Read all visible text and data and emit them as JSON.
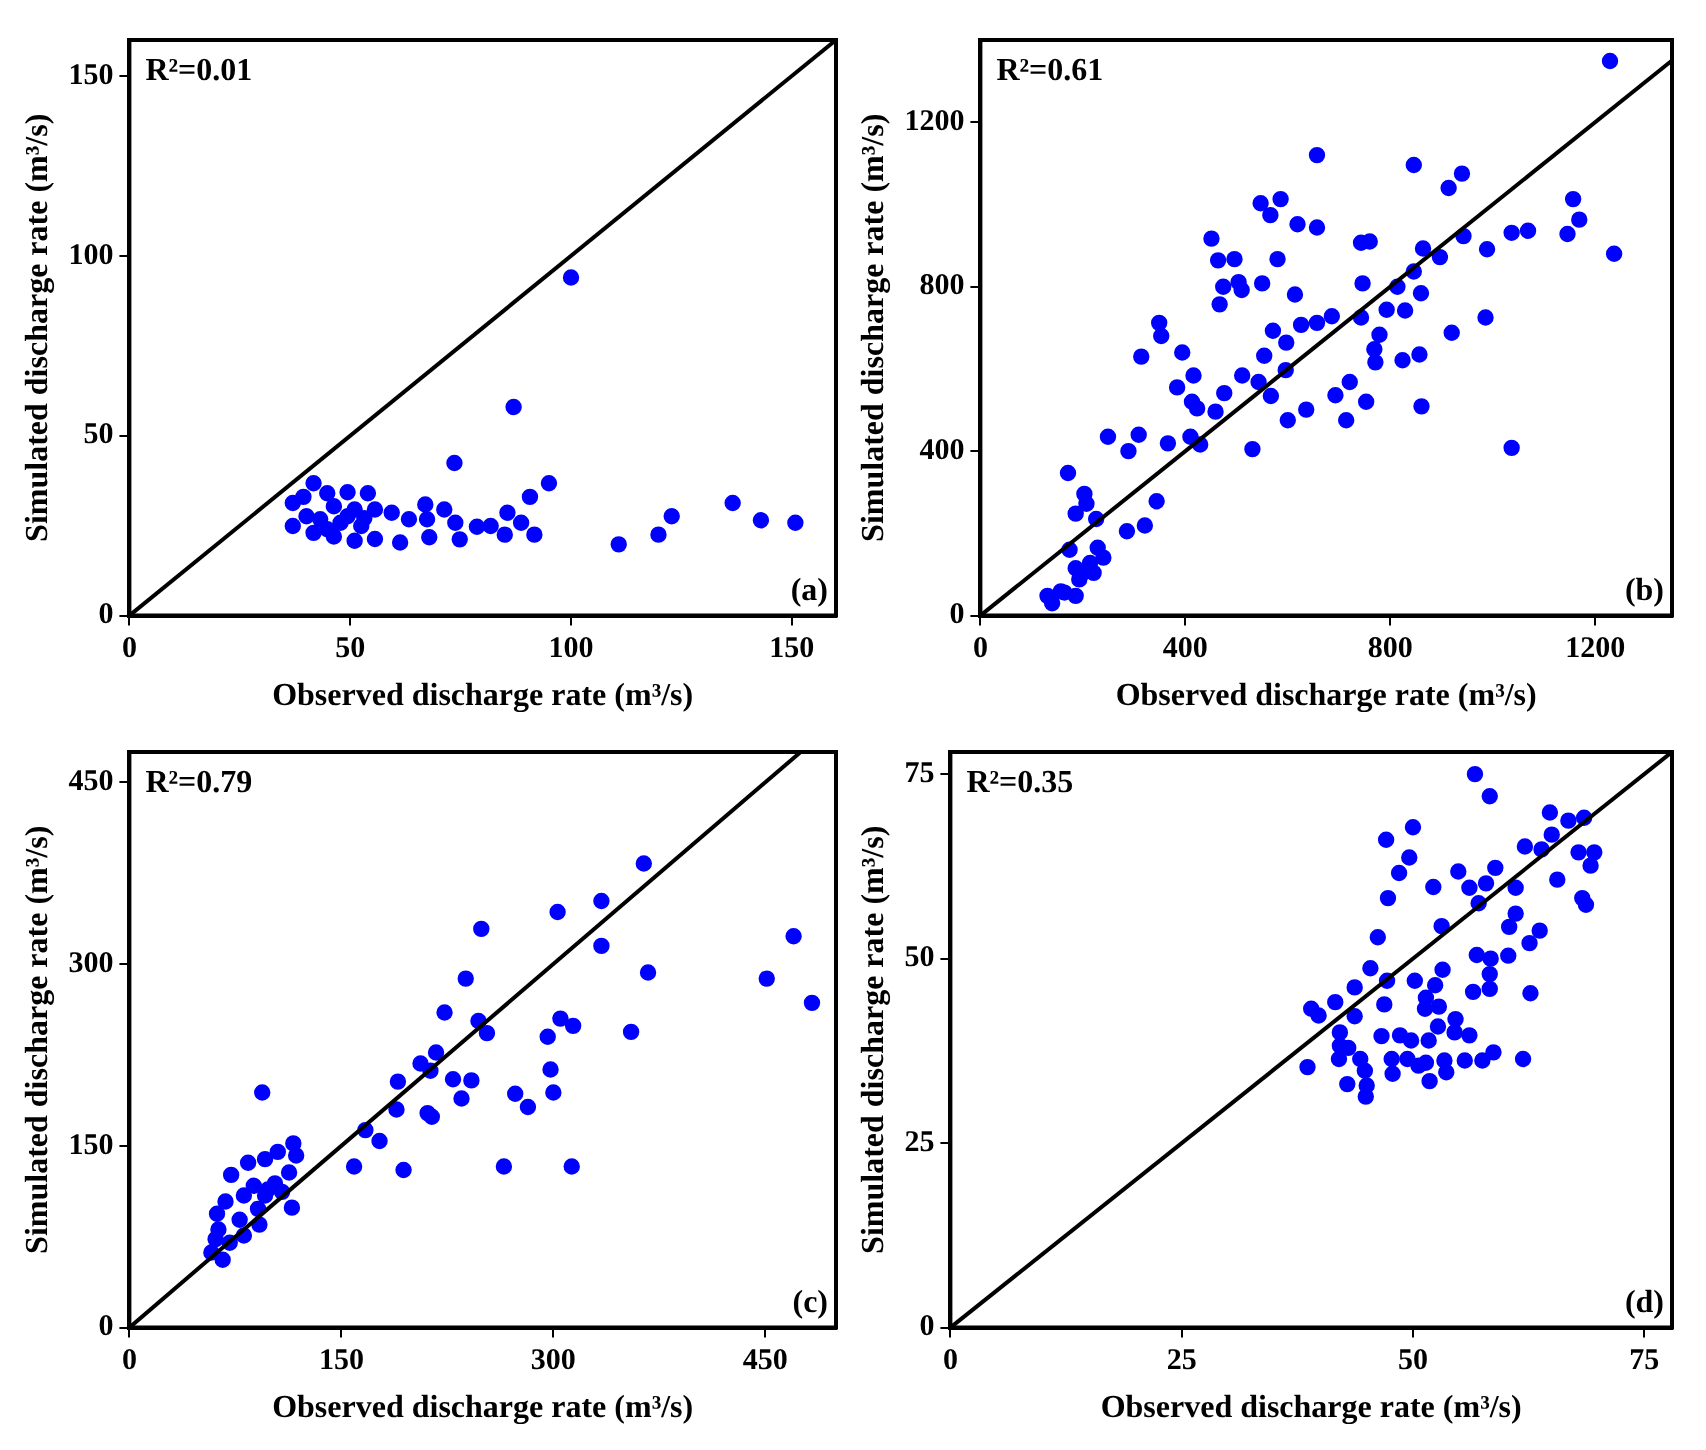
{
  "chart_data": [
    {
      "type": "scatter",
      "xlabel": "Observed discharge rate (m³/s)",
      "ylabel": "Simulated discharge rate (m³/s)",
      "xlim": [
        0,
        160
      ],
      "ylim": [
        0,
        160
      ],
      "xticks": [
        0,
        50,
        100,
        150
      ],
      "yticks": [
        0,
        50,
        100,
        150
      ],
      "annotations": [
        "R²=0.01",
        "(a)"
      ],
      "series": [
        {
          "type": "scatter",
          "marker": "circle",
          "color": "#0000ff",
          "x": [
            87,
            73.6,
            95,
            90.7,
            136.6,
            143,
            150.8,
            122.8,
            119.8,
            110.8,
            91.7,
            88.7,
            85.6,
            85,
            81.8,
            78.7,
            74.8,
            73.8,
            71.3,
            67,
            67.4,
            67.9,
            63.3,
            61.3,
            59.4,
            55.6,
            37,
            37,
            41.7,
            39.4,
            44.8,
            49.4,
            54,
            46.3,
            51,
            55.6,
            43.2,
            47.8,
            52.5,
            41.7,
            46.3,
            51,
            40.1,
            44.8,
            49.4,
            53.2,
            100
          ],
          "values": [
            58,
            42.4,
            36.8,
            33,
            31.3,
            26.5,
            25.8,
            27.6,
            22.5,
            19.8,
            22.5,
            25.8,
            28.6,
            22.5,
            24.9,
            24.7,
            21.2,
            25.8,
            29.5,
            30.9,
            26.8,
            21.8,
            26.8,
            20.3,
            28.6,
            21.3,
            31.3,
            24.9,
            36.8,
            33,
            34,
            34.3,
            34,
            30.4,
            29.5,
            29.5,
            26.8,
            25.8,
            24.9,
            23,
            22,
            20.8,
            27.6,
            24,
            27.6,
            27.1,
            94
          ]
        },
        {
          "type": "line",
          "color": "#000000",
          "x": [
            0,
            160
          ],
          "values": [
            0,
            160
          ]
        }
      ]
    },
    {
      "type": "scatter",
      "xlabel": "Observed discharge rate (m³/s)",
      "ylabel": "Simulated discharge rate (m³/s)",
      "xlim": [
        0,
        1350
      ],
      "ylim": [
        0,
        1400
      ],
      "xticks": [
        0,
        400,
        800,
        1200
      ],
      "yticks": [
        0,
        400,
        800,
        1200
      ],
      "annotations": [
        "R²=0.61",
        "(b)"
      ],
      "series": [
        {
          "type": "scatter",
          "marker": "circle",
          "color": "#0000ff",
          "x": [
            1229,
            657,
            846,
            940,
            914,
            1157,
            1169,
            1146,
            1037,
            1069,
            1237,
            547,
            586,
            566,
            619,
            657,
            451,
            464,
            496,
            580,
            474,
            504,
            510,
            550,
            467,
            743,
            760,
            864,
            897,
            943,
            989,
            746,
            846,
            814,
            860,
            614,
            793,
            829,
            743,
            686,
            657,
            626,
            571,
            597,
            554,
            596,
            511,
            543,
            567,
            476,
            459,
            423,
            413,
            416,
            384,
            394,
            349,
            353,
            314,
            779,
            769,
            771,
            824,
            857,
            920,
            986,
            693,
            721,
            753,
            714,
            636,
            600,
            861,
            1037,
            531,
            429,
            410,
            366,
            309,
            289,
            249,
            171,
            203,
            207,
            186,
            226,
            344,
            321,
            286,
            229,
            174,
            240,
            214,
            186,
            221,
            193,
            157,
            186,
            131,
            140,
            164,
            200
          ],
          "values": [
            1349,
            1120,
            1096,
            1075,
            1040,
            1013,
            963,
            928,
            931,
            936,
            880,
            1003,
            1013,
            974,
            952,
            944,
            917,
            864,
            867,
            867,
            800,
            811,
            792,
            808,
            757,
            907,
            910,
            893,
            872,
            923,
            891,
            808,
            837,
            800,
            784,
            781,
            744,
            742,
            725,
            728,
            712,
            707,
            693,
            664,
            632,
            597,
            584,
            568,
            534,
            541,
            496,
            504,
            520,
            584,
            555,
            640,
            712,
            680,
            630,
            683,
            648,
            616,
            621,
            635,
            688,
            725,
            536,
            568,
            520,
            475,
            501,
            475,
            509,
            408,
            405,
            416,
            435,
            419,
            440,
            400,
            435,
            347,
            296,
            272,
            248,
            235,
            278,
            219,
            205,
            165,
            160,
            141,
            128,
            115,
            104,
            88,
            59,
            48,
            48,
            30,
            56,
            104
          ]
        },
        {
          "type": "line",
          "color": "#000000",
          "x": [
            0,
            1350
          ],
          "values": [
            0,
            1350
          ]
        }
      ]
    },
    {
      "type": "scatter",
      "xlabel": "Observed discharge rate (m³/s)",
      "ylabel": "Simulated discharge rate (m³/s)",
      "xlim": [
        0,
        500
      ],
      "ylim": [
        0,
        475
      ],
      "xticks": [
        0,
        150,
        300,
        450
      ],
      "yticks": [
        0,
        150,
        300,
        450
      ],
      "annotations": [
        "R²=0.79",
        "(c)"
      ],
      "series": [
        {
          "type": "scatter",
          "marker": "circle",
          "color": "#0000ff",
          "x": [
            364,
            303,
            334,
            334,
            367,
            249,
            238,
            470,
            451,
            483,
            223,
            247,
            253,
            305,
            314,
            296,
            355,
            217,
            206,
            213,
            190,
            229,
            242,
            235,
            298,
            300,
            273,
            282,
            189,
            211,
            214,
            167,
            177,
            159,
            194,
            265,
            313,
            94,
            116,
            105,
            118,
            84,
            72,
            96,
            113,
            103,
            88,
            96,
            81,
            68,
            115,
            91,
            62,
            78,
            92,
            63,
            81,
            71,
            58,
            66,
            61,
            98,
            108
          ],
          "values": [
            383,
            343,
            352,
            315,
            293,
            329,
            288,
            323,
            288,
            268,
            260,
            253,
            243,
            255,
            249,
            240,
            244,
            227,
            218,
            212,
            203,
            205,
            204,
            189,
            213,
            194,
            193,
            182,
            180,
            177,
            174,
            163,
            154,
            133,
            130,
            133,
            133,
            194,
            152,
            145,
            142,
            136,
            126,
            139,
            128,
            119,
            117,
            109,
            109,
            104,
            99,
            98,
            94,
            89,
            85,
            81,
            76,
            70,
            62,
            56,
            73,
            114,
            112
          ]
        },
        {
          "type": "line",
          "color": "#000000",
          "x": [
            0,
            475
          ],
          "values": [
            0,
            475
          ]
        }
      ]
    },
    {
      "type": "scatter",
      "xlabel": "Observed discharge rate (m³/s)",
      "ylabel": "Simulated discharge rate (m³/s)",
      "xlim": [
        0,
        78
      ],
      "ylim": [
        0,
        78
      ],
      "xticks": [
        0,
        25,
        50,
        75
      ],
      "yticks": [
        0,
        25,
        50,
        75
      ],
      "annotations": [
        "R²=0.35",
        "(d)"
      ],
      "series": [
        {
          "type": "scatter",
          "marker": "circle",
          "color": "#0000ff",
          "x": [
            56.7,
            58.3,
            50,
            47.1,
            49.6,
            48.5,
            47.3,
            46.2,
            52.2,
            54.9,
            56.1,
            57.9,
            58.9,
            57.1,
            62.1,
            63.9,
            65,
            64.8,
            66.8,
            68.5,
            67.9,
            69.6,
            69.2,
            65.6,
            61.1,
            68.3,
            68.7,
            61.1,
            60.4,
            63.7,
            62.6,
            53.1,
            56.9,
            58.4,
            60.3,
            58.3,
            58.3,
            56.5,
            62.7,
            53.2,
            45.4,
            47.2,
            50.2,
            52.4,
            43.7,
            41.6,
            39,
            39.8,
            43.7,
            46.9,
            51.4,
            52.8,
            51.3,
            54.6,
            52.7,
            42.1,
            46.6,
            48.6,
            49.8,
            51.7,
            54.5,
            56.1,
            42.1,
            43,
            42,
            44.3,
            47.7,
            49.4,
            51.4,
            53.4,
            55.6,
            57.5,
            58.7,
            61.9,
            38.6,
            44.8,
            47.8,
            51.8,
            53.6,
            42.9,
            45,
            44.9,
            50.6
          ],
          "values": [
            75,
            72,
            67.8,
            66.1,
            63.7,
            61.6,
            58.2,
            52.9,
            59.7,
            61.8,
            59.6,
            60.2,
            62.3,
            57.5,
            65.2,
            64.8,
            66.8,
            69.8,
            68.7,
            69.1,
            64.4,
            64.4,
            62.6,
            60.7,
            59.6,
            58.2,
            57.3,
            56.1,
            54.3,
            53.8,
            52.1,
            54.4,
            50.5,
            50,
            50.4,
            47.9,
            45.9,
            45.5,
            45.3,
            48.5,
            48.7,
            47,
            47,
            46.4,
            46.1,
            44.1,
            43.2,
            42.3,
            42.2,
            43.8,
            44.7,
            43.5,
            43.2,
            41.8,
            40.8,
            40,
            39.5,
            39.6,
            38.9,
            38.9,
            40,
            39.6,
            38.2,
            37.9,
            36.4,
            36.4,
            36.4,
            36.4,
            35.9,
            36.2,
            36.2,
            36.2,
            37.3,
            36.4,
            35.3,
            34.8,
            34.4,
            33.4,
            34.6,
            33,
            32.8,
            31.3,
            35.5
          ]
        },
        {
          "type": "line",
          "color": "#000000",
          "x": [
            0,
            78
          ],
          "values": [
            0,
            78
          ]
        }
      ]
    }
  ]
}
